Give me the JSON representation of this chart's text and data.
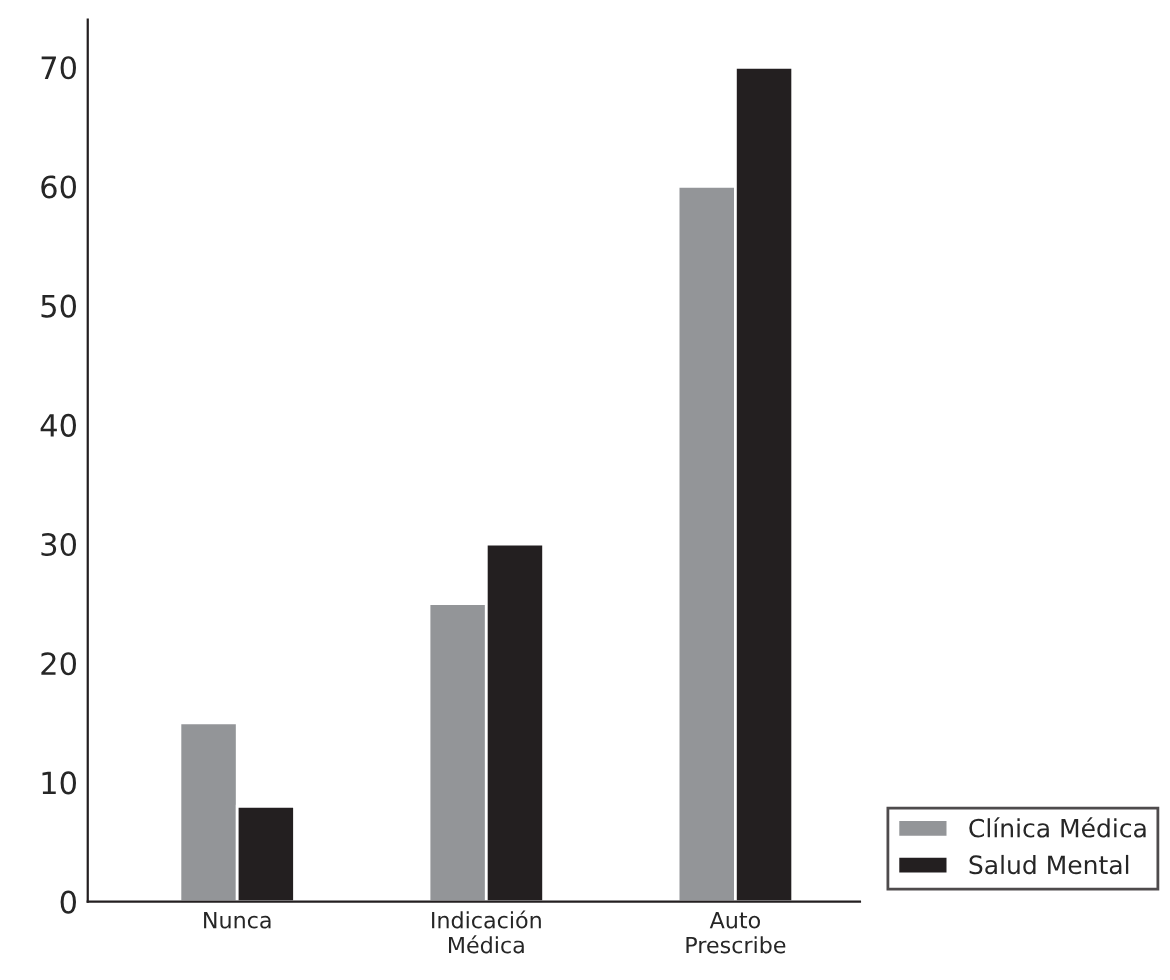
{
  "chart_data": {
    "type": "bar",
    "categories": [
      "Nunca",
      "Indicación\nMédica",
      "Auto\nPrescribe"
    ],
    "series": [
      {
        "name": "Clínica Médica",
        "color": "#939598",
        "values": [
          15,
          25,
          60
        ]
      },
      {
        "name": "Salud Mental",
        "color": "#231f20",
        "values": [
          8,
          30,
          70
        ]
      }
    ],
    "ylim": [
      0,
      74
    ],
    "yticks": [
      0,
      10,
      20,
      30,
      40,
      50,
      60,
      70
    ],
    "grid": false,
    "legend": "bottom right"
  }
}
